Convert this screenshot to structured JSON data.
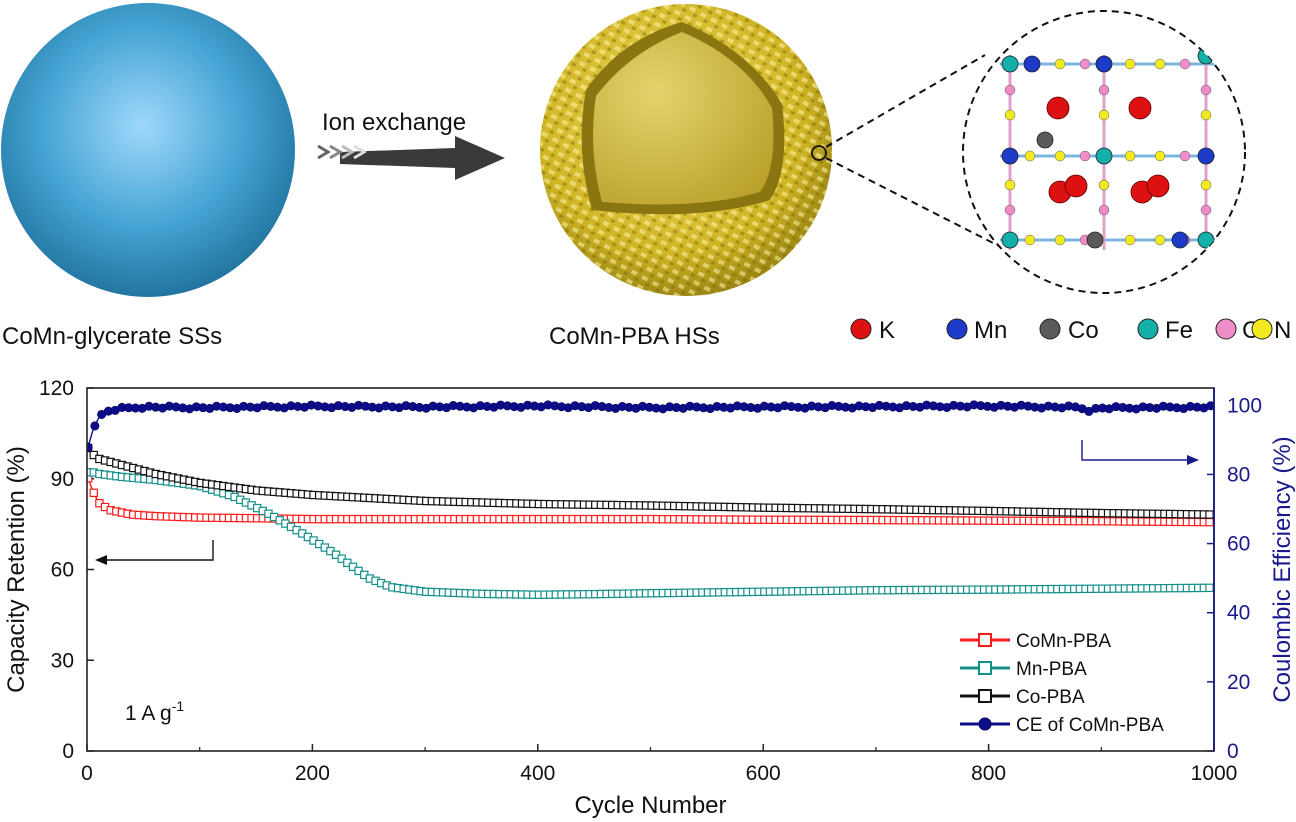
{
  "schematic": {
    "left_label": "CoMn-glycerate SSs",
    "arrow_label": "Ion exchange",
    "right_label": "CoMn-PBA HSs",
    "elements": [
      {
        "symbol": "K",
        "color": "#dd1111"
      },
      {
        "symbol": "Mn",
        "color": "#1c3bc8"
      },
      {
        "symbol": "Co",
        "color": "#5a5a5a"
      },
      {
        "symbol": "Fe",
        "color": "#12b0a8"
      },
      {
        "symbol": "C",
        "color": "#f08cc8"
      },
      {
        "symbol": "N",
        "color": "#f2ea1e"
      }
    ]
  },
  "chart_data": {
    "type": "line",
    "xlabel": "Cycle Number",
    "ylabel": "Capacity Retention (%)",
    "y2label": "Coulombic Efficiency (%)",
    "xlim": [
      0,
      1000
    ],
    "ylim": [
      0,
      120
    ],
    "y2lim": [
      0,
      105
    ],
    "x_ticks": [
      "0",
      "200",
      "400",
      "600",
      "800",
      "1000"
    ],
    "y_ticks": [
      "0",
      "30",
      "60",
      "90",
      "120"
    ],
    "y2_ticks": [
      "0",
      "20",
      "40",
      "60",
      "80",
      "100"
    ],
    "annotation": {
      "main": "1 A g",
      "sup": "-1"
    },
    "legend_position": "bottom-right",
    "series": [
      {
        "name": "CoMn-PBA",
        "axis": "left",
        "color": "#ff1a1a",
        "marker": "square-open",
        "x": [
          1,
          5,
          10,
          20,
          40,
          60,
          100,
          150,
          200,
          300,
          400,
          500,
          600,
          700,
          800,
          900,
          1000
        ],
        "values": [
          90,
          86,
          82,
          79.5,
          78,
          77.5,
          77,
          76.8,
          76.5,
          76.5,
          76.5,
          76.5,
          76.3,
          76.2,
          76,
          75.8,
          75.5
        ]
      },
      {
        "name": "Mn-PBA",
        "axis": "left",
        "color": "#138f8a",
        "marker": "square-open",
        "x": [
          1,
          5,
          10,
          30,
          60,
          100,
          130,
          160,
          190,
          220,
          250,
          270,
          300,
          350,
          400,
          450,
          500,
          600,
          700,
          800,
          900,
          1000
        ],
        "values": [
          92,
          92,
          91.5,
          90.5,
          89.5,
          87.5,
          84,
          78.5,
          72,
          65,
          57,
          54,
          52.5,
          51.8,
          51.5,
          51.7,
          52,
          52.5,
          53,
          53.2,
          53.5,
          53.8
        ]
      },
      {
        "name": "Co-PBA",
        "axis": "left",
        "color": "#111111",
        "marker": "square-open",
        "x": [
          1,
          5,
          10,
          20,
          40,
          60,
          80,
          100,
          150,
          200,
          250,
          300,
          400,
          500,
          600,
          700,
          800,
          900,
          1000
        ],
        "values": [
          100,
          98,
          96.5,
          95.5,
          93.5,
          91.5,
          90,
          88.5,
          86,
          84.5,
          83.5,
          82.5,
          81.5,
          81,
          80.3,
          79.8,
          79.2,
          78.5,
          78
        ]
      },
      {
        "name": "CE of CoMn-PBA",
        "axis": "right",
        "color": "#0d0d8c",
        "marker": "circle-filled",
        "x": [
          1,
          5,
          10,
          20,
          30,
          50,
          100,
          200,
          300,
          400,
          500,
          600,
          700,
          800,
          880,
          890,
          900,
          1000
        ],
        "values": [
          88,
          93,
          96.5,
          98.5,
          99,
          99.5,
          99.3,
          99.7,
          99.5,
          99.8,
          99.3,
          99.5,
          99.6,
          99.8,
          99.4,
          98.5,
          99.2,
          99.5
        ]
      }
    ]
  }
}
